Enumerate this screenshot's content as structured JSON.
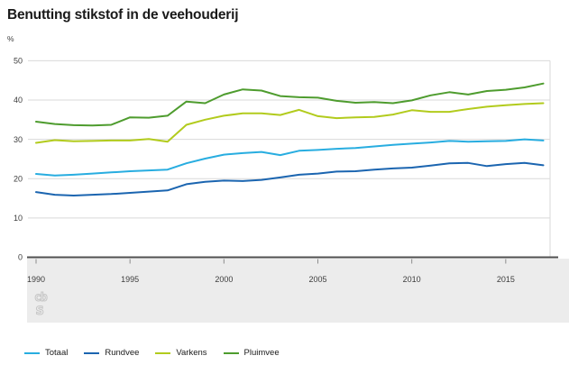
{
  "header": {
    "title": "Benutting stikstof in de veehouderij"
  },
  "chart_data": {
    "type": "line",
    "title": "Benutting stikstof in de veehouderij",
    "xlabel": "",
    "ylabel": "%",
    "ylim": [
      0,
      50
    ],
    "y_ticks": [
      0,
      10,
      20,
      30,
      40,
      50
    ],
    "x_ticks": [
      1990,
      1995,
      2000,
      2005,
      2010,
      2015
    ],
    "grid": "horizontal",
    "legend_position": "bottom",
    "x": [
      1990,
      1991,
      1992,
      1993,
      1994,
      1995,
      1996,
      1997,
      1998,
      1999,
      2000,
      2001,
      2002,
      2003,
      2004,
      2005,
      2006,
      2007,
      2008,
      2009,
      2010,
      2011,
      2012,
      2013,
      2014,
      2015,
      2016,
      2017
    ],
    "series": [
      {
        "name": "Totaal",
        "color": "#28ade0",
        "values": [
          21.2,
          20.8,
          21.0,
          21.3,
          21.6,
          21.9,
          22.1,
          22.3,
          23.9,
          25.1,
          26.1,
          26.5,
          26.8,
          26.0,
          27.1,
          27.3,
          27.6,
          27.8,
          28.2,
          28.6,
          28.9,
          29.2,
          29.6,
          29.4,
          29.5,
          29.6,
          30.0,
          29.7
        ]
      },
      {
        "name": "Rundvee",
        "color": "#1b65b0",
        "values": [
          16.6,
          15.9,
          15.7,
          15.9,
          16.1,
          16.4,
          16.7,
          17.0,
          18.6,
          19.2,
          19.5,
          19.4,
          19.7,
          20.3,
          21.0,
          21.3,
          21.8,
          21.9,
          22.3,
          22.6,
          22.8,
          23.3,
          23.9,
          24.0,
          23.2,
          23.7,
          24.0,
          23.4
        ]
      },
      {
        "name": "Varkens",
        "color": "#b2cb1d",
        "values": [
          29.1,
          29.8,
          29.5,
          29.6,
          29.7,
          29.7,
          30.1,
          29.4,
          33.7,
          35.0,
          36.0,
          36.6,
          36.6,
          36.2,
          37.5,
          35.9,
          35.4,
          35.6,
          35.7,
          36.3,
          37.4,
          37.0,
          37.0,
          37.7,
          38.3,
          38.7,
          39.0,
          39.2
        ]
      },
      {
        "name": "Pluimvee",
        "color": "#4e9c2e",
        "values": [
          34.5,
          33.9,
          33.6,
          33.5,
          33.7,
          35.6,
          35.5,
          36.0,
          39.6,
          39.2,
          41.4,
          42.7,
          42.4,
          41.0,
          40.7,
          40.6,
          39.8,
          39.3,
          39.5,
          39.2,
          39.9,
          41.2,
          42.0,
          41.4,
          42.3,
          42.6,
          43.2,
          44.2
        ]
      }
    ],
    "colors": {
      "axis": "#4f4f4f",
      "gridline": "#d9d9d9",
      "tick": "#8c8c8c",
      "tick_label": "#3d3d3d",
      "footer_band": "#ececec"
    }
  },
  "footer": {
    "logo": "cbs"
  }
}
